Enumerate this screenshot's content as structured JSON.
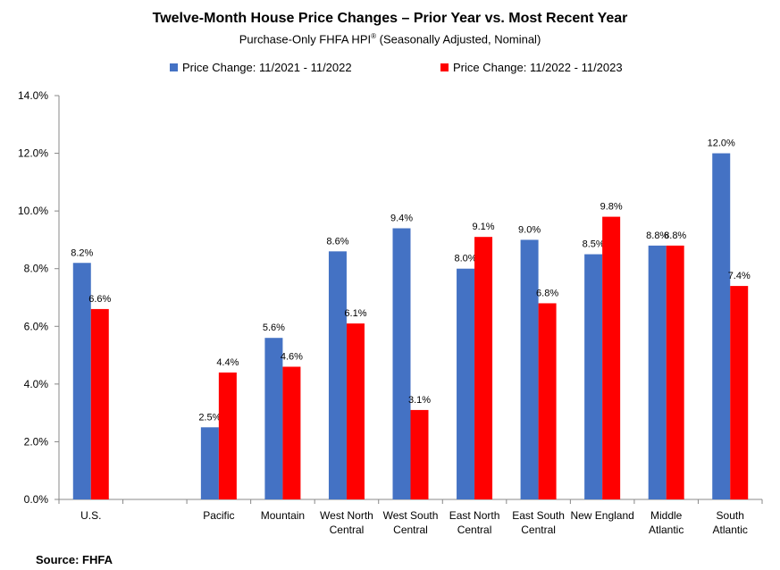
{
  "title": "Twelve-Month House Price Changes – Prior Year vs. Most Recent Year",
  "subtitle_main": "Purchase-Only FHFA HPI",
  "subtitle_sup": "®",
  "subtitle_tail": " (Seasonally Adjusted, Nominal)",
  "source": "Source: FHFA",
  "colors": {
    "series1": "#4472C4",
    "series2": "#FF0000"
  },
  "chart_data": {
    "type": "bar",
    "categories": [
      [
        "U.S."
      ],
      [
        ""
      ],
      [
        "Pacific"
      ],
      [
        "Mountain"
      ],
      [
        "West North",
        "Central"
      ],
      [
        "West South",
        "Central"
      ],
      [
        "East North",
        "Central"
      ],
      [
        "East South",
        "Central"
      ],
      [
        "New England"
      ],
      [
        "Middle",
        "Atlantic"
      ],
      [
        "South",
        "Atlantic"
      ]
    ],
    "series": [
      {
        "name": "Price Change:  11/2021 - 11/2022",
        "values": [
          8.2,
          null,
          2.5,
          5.6,
          8.6,
          9.4,
          8.0,
          9.0,
          8.5,
          8.8,
          12.0
        ],
        "labels": [
          "8.2%",
          "",
          "2.5%",
          "5.6%",
          "8.6%",
          "9.4%",
          "8.0%",
          "9.0%",
          "8.5%",
          "8.8%",
          "12.0%"
        ]
      },
      {
        "name": "Price Change:  11/2022 - 11/2023",
        "values": [
          6.6,
          null,
          4.4,
          4.6,
          6.1,
          3.1,
          9.1,
          6.8,
          9.8,
          8.8,
          7.4
        ],
        "labels": [
          "6.6%",
          "",
          "4.4%",
          "4.6%",
          "6.1%",
          "3.1%",
          "9.1%",
          "6.8%",
          "9.8%",
          "8.8%",
          "7.4%"
        ]
      }
    ],
    "ylim": [
      0,
      14
    ],
    "yticks": [
      0,
      2,
      4,
      6,
      8,
      10,
      12,
      14
    ],
    "yticklabels": [
      "0.0%",
      "2.0%",
      "4.0%",
      "6.0%",
      "8.0%",
      "10.0%",
      "12.0%",
      "14.0%"
    ],
    "legend_position": "top",
    "grid": false
  }
}
